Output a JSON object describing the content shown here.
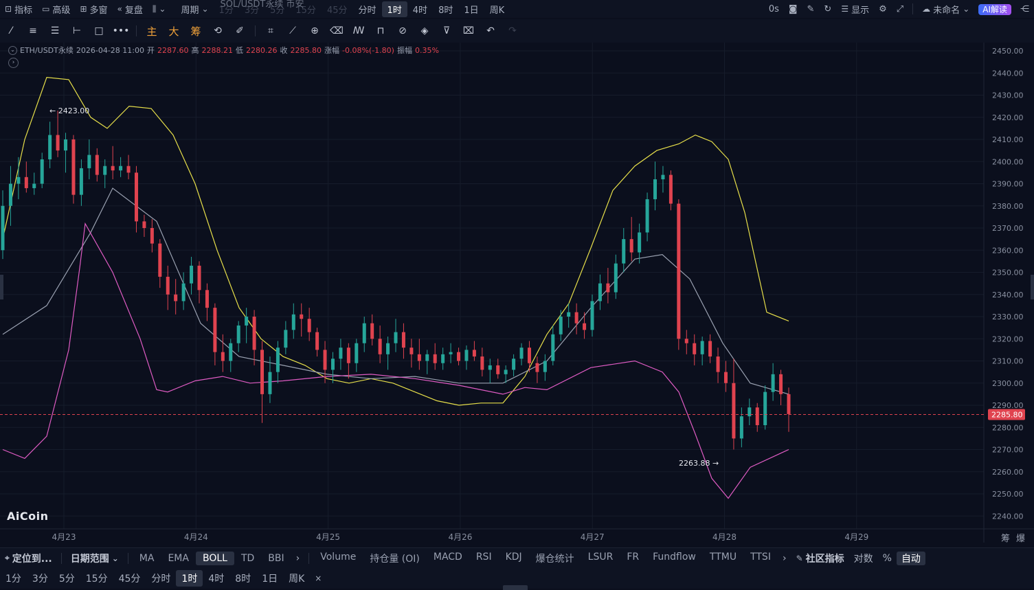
{
  "topbar": {
    "left_items": [
      {
        "icon": "indicator-icon",
        "label": "指标"
      },
      {
        "icon": "advanced-icon",
        "label": "高级"
      },
      {
        "icon": "multi-window-icon",
        "label": "多窗"
      },
      {
        "icon": "replay-icon",
        "label": "复盘"
      },
      {
        "icon": "chart-type-icon",
        "label": ""
      }
    ],
    "period_label": "周期",
    "symbol_overlay": "SOL/USDT永续 币安",
    "periods": [
      "1分",
      "3分",
      "5分",
      "15分",
      "45分",
      "分时",
      "1时",
      "4时",
      "8时",
      "1日",
      "周K"
    ],
    "active_period": "1时",
    "right_items": {
      "delay": "0s",
      "display": "显示",
      "layout_name": "未命名",
      "ai_label": "AI解读"
    }
  },
  "toolbar": {
    "orange_tools": [
      "主",
      "大",
      "筹"
    ]
  },
  "info": {
    "symbol": "ETH/USDT永续",
    "datetime": "2026-04-28 11:00",
    "open_label": "开",
    "open": "2287.60",
    "high_label": "高",
    "high": "2288.21",
    "low_label": "低",
    "low": "2280.26",
    "close_label": "收",
    "close": "2285.80",
    "change_label": "涨幅",
    "change": "-0.08%(-1.80)",
    "amp_label": "振幅",
    "amp": "0.35%"
  },
  "chart_data": {
    "type": "candlestick",
    "symbol": "ETH/USDT永续",
    "interval": "1H",
    "ylim": [
      2235,
      2455
    ],
    "y_ticks": [
      2240,
      2250,
      2260,
      2270,
      2280,
      2290,
      2300,
      2310,
      2320,
      2330,
      2340,
      2350,
      2360,
      2370,
      2380,
      2390,
      2400,
      2410,
      2420,
      2430,
      2440,
      2450
    ],
    "x_ticks": [
      "4月23",
      "4月24",
      "4月25",
      "4月26",
      "4月27",
      "4月28",
      "4月29"
    ],
    "last_price": "2285.80",
    "max_annotation": "2423.00",
    "min_annotation": "2263.88",
    "colors": {
      "up": "#26a69a",
      "down": "#e0434f",
      "upper": "#e8e04a",
      "mid": "#9aa1b1",
      "lower": "#e05cc4",
      "background": "#0b0f1d"
    },
    "bollinger": {
      "upper": [
        [
          0,
          2365
        ],
        [
          8,
          2410
        ],
        [
          16,
          2438
        ],
        [
          24,
          2437
        ],
        [
          32,
          2420
        ],
        [
          38,
          2415
        ],
        [
          46,
          2425
        ],
        [
          54,
          2424
        ],
        [
          62,
          2412
        ],
        [
          70,
          2390
        ],
        [
          78,
          2360
        ],
        [
          86,
          2334
        ],
        [
          94,
          2320
        ],
        [
          102,
          2312
        ],
        [
          110,
          2308
        ],
        [
          118,
          2302
        ],
        [
          126,
          2300
        ],
        [
          134,
          2302
        ],
        [
          142,
          2300
        ],
        [
          150,
          2296
        ],
        [
          158,
          2292
        ],
        [
          166,
          2290
        ],
        [
          174,
          2291
        ],
        [
          182,
          2291
        ],
        [
          190,
          2303
        ],
        [
          198,
          2322
        ],
        [
          206,
          2336
        ],
        [
          214,
          2361
        ],
        [
          222,
          2387
        ],
        [
          230,
          2398
        ],
        [
          238,
          2405
        ],
        [
          246,
          2408
        ],
        [
          252,
          2412
        ],
        [
          258,
          2409
        ],
        [
          264,
          2401
        ],
        [
          270,
          2377
        ],
        [
          278,
          2332
        ],
        [
          286,
          2328
        ]
      ],
      "mid": [
        [
          0,
          2322
        ],
        [
          16,
          2335
        ],
        [
          32,
          2368
        ],
        [
          40,
          2388
        ],
        [
          56,
          2373
        ],
        [
          72,
          2327
        ],
        [
          86,
          2312
        ],
        [
          102,
          2308
        ],
        [
          118,
          2304
        ],
        [
          134,
          2302
        ],
        [
          150,
          2303
        ],
        [
          166,
          2300
        ],
        [
          182,
          2300
        ],
        [
          198,
          2310
        ],
        [
          214,
          2334
        ],
        [
          230,
          2356
        ],
        [
          240,
          2358
        ],
        [
          250,
          2347
        ],
        [
          262,
          2318
        ],
        [
          272,
          2300
        ],
        [
          286,
          2295
        ]
      ],
      "lower": [
        [
          0,
          2270
        ],
        [
          8,
          2266
        ],
        [
          16,
          2276
        ],
        [
          24,
          2315
        ],
        [
          28,
          2352
        ],
        [
          30,
          2372
        ],
        [
          40,
          2350
        ],
        [
          50,
          2320
        ],
        [
          56,
          2297
        ],
        [
          60,
          2296
        ],
        [
          70,
          2301
        ],
        [
          80,
          2303
        ],
        [
          90,
          2300
        ],
        [
          102,
          2301
        ],
        [
          118,
          2303
        ],
        [
          134,
          2304
        ],
        [
          150,
          2302
        ],
        [
          166,
          2299
        ],
        [
          182,
          2295
        ],
        [
          190,
          2298
        ],
        [
          198,
          2297
        ],
        [
          214,
          2307
        ],
        [
          230,
          2310
        ],
        [
          240,
          2305
        ],
        [
          246,
          2296
        ],
        [
          252,
          2277
        ],
        [
          258,
          2257
        ],
        [
          264,
          2248
        ],
        [
          272,
          2262
        ],
        [
          286,
          2270
        ]
      ]
    },
    "candles": [
      [
        2360,
        2387,
        2356,
        2380
      ],
      [
        2380,
        2398,
        2371,
        2390
      ],
      [
        2390,
        2402,
        2383,
        2393
      ],
      [
        2393,
        2400,
        2386,
        2388
      ],
      [
        2388,
        2395,
        2385,
        2390
      ],
      [
        2390,
        2404,
        2388,
        2401
      ],
      [
        2401,
        2418,
        2397,
        2412
      ],
      [
        2412,
        2423,
        2402,
        2405
      ],
      [
        2405,
        2413,
        2395,
        2410
      ],
      [
        2410,
        2412,
        2381,
        2385
      ],
      [
        2385,
        2401,
        2380,
        2397
      ],
      [
        2397,
        2410,
        2392,
        2403
      ],
      [
        2403,
        2406,
        2391,
        2394
      ],
      [
        2394,
        2401,
        2388,
        2398
      ],
      [
        2398,
        2407,
        2392,
        2396
      ],
      [
        2396,
        2402,
        2393,
        2398
      ],
      [
        2398,
        2403,
        2392,
        2395
      ],
      [
        2395,
        2398,
        2368,
        2373
      ],
      [
        2373,
        2376,
        2366,
        2370
      ],
      [
        2370,
        2374,
        2359,
        2363
      ],
      [
        2363,
        2365,
        2343,
        2348
      ],
      [
        2348,
        2353,
        2333,
        2340
      ],
      [
        2340,
        2347,
        2331,
        2337
      ],
      [
        2337,
        2350,
        2333,
        2345
      ],
      [
        2345,
        2357,
        2340,
        2353
      ],
      [
        2353,
        2355,
        2336,
        2342
      ],
      [
        2342,
        2345,
        2328,
        2334
      ],
      [
        2334,
        2336,
        2308,
        2314
      ],
      [
        2314,
        2322,
        2305,
        2310
      ],
      [
        2310,
        2320,
        2305,
        2318
      ],
      [
        2318,
        2328,
        2314,
        2326
      ],
      [
        2326,
        2334,
        2318,
        2330
      ],
      [
        2330,
        2333,
        2308,
        2315
      ],
      [
        2315,
        2319,
        2282,
        2295
      ],
      [
        2295,
        2312,
        2291,
        2305
      ],
      [
        2305,
        2319,
        2300,
        2316
      ],
      [
        2316,
        2328,
        2313,
        2324
      ],
      [
        2324,
        2336,
        2320,
        2331
      ],
      [
        2331,
        2336,
        2321,
        2329
      ],
      [
        2329,
        2334,
        2319,
        2323
      ],
      [
        2323,
        2325,
        2312,
        2315
      ],
      [
        2315,
        2319,
        2300,
        2306
      ],
      [
        2306,
        2314,
        2300,
        2311
      ],
      [
        2311,
        2320,
        2306,
        2316
      ],
      [
        2316,
        2318,
        2302,
        2309
      ],
      [
        2309,
        2320,
        2305,
        2318
      ],
      [
        2318,
        2330,
        2314,
        2327
      ],
      [
        2327,
        2331,
        2317,
        2320
      ],
      [
        2320,
        2326,
        2309,
        2313
      ],
      [
        2313,
        2321,
        2306,
        2318
      ],
      [
        2318,
        2329,
        2314,
        2323
      ],
      [
        2323,
        2327,
        2311,
        2316
      ],
      [
        2316,
        2320,
        2307,
        2313
      ],
      [
        2313,
        2320,
        2306,
        2310
      ],
      [
        2310,
        2315,
        2304,
        2313
      ],
      [
        2313,
        2318,
        2306,
        2309
      ],
      [
        2309,
        2316,
        2306,
        2313
      ],
      [
        2313,
        2318,
        2309,
        2314
      ],
      [
        2314,
        2316,
        2308,
        2310
      ],
      [
        2310,
        2317,
        2306,
        2315
      ],
      [
        2315,
        2319,
        2310,
        2312
      ],
      [
        2312,
        2316,
        2303,
        2306
      ],
      [
        2306,
        2311,
        2300,
        2308
      ],
      [
        2308,
        2311,
        2302,
        2304
      ],
      [
        2304,
        2308,
        2300,
        2306
      ],
      [
        2306,
        2313,
        2303,
        2311
      ],
      [
        2311,
        2318,
        2308,
        2316
      ],
      [
        2316,
        2319,
        2305,
        2309
      ],
      [
        2309,
        2312,
        2300,
        2305
      ],
      [
        2305,
        2313,
        2301,
        2310
      ],
      [
        2310,
        2326,
        2308,
        2322
      ],
      [
        2322,
        2333,
        2319,
        2330
      ],
      [
        2330,
        2336,
        2325,
        2332
      ],
      [
        2332,
        2336,
        2322,
        2327
      ],
      [
        2327,
        2332,
        2320,
        2324
      ],
      [
        2324,
        2340,
        2321,
        2337
      ],
      [
        2337,
        2349,
        2333,
        2345
      ],
      [
        2345,
        2352,
        2336,
        2341
      ],
      [
        2341,
        2358,
        2338,
        2354
      ],
      [
        2354,
        2370,
        2350,
        2365
      ],
      [
        2365,
        2375,
        2355,
        2359
      ],
      [
        2359,
        2372,
        2354,
        2368
      ],
      [
        2368,
        2386,
        2364,
        2383
      ],
      [
        2383,
        2400,
        2378,
        2392
      ],
      [
        2392,
        2398,
        2386,
        2394
      ],
      [
        2394,
        2396,
        2378,
        2381
      ],
      [
        2381,
        2383,
        2315,
        2320
      ],
      [
        2320,
        2324,
        2313,
        2318
      ],
      [
        2318,
        2322,
        2308,
        2313
      ],
      [
        2313,
        2321,
        2308,
        2319
      ],
      [
        2319,
        2322,
        2309,
        2312
      ],
      [
        2312,
        2316,
        2300,
        2305
      ],
      [
        2305,
        2310,
        2296,
        2300
      ],
      [
        2300,
        2311,
        2270,
        2275
      ],
      [
        2275,
        2289,
        2271,
        2285
      ],
      [
        2285,
        2293,
        2281,
        2289
      ],
      [
        2289,
        2291,
        2278,
        2281
      ],
      [
        2281,
        2299,
        2279,
        2296
      ],
      [
        2296,
        2309,
        2292,
        2304
      ],
      [
        2304,
        2306,
        2290,
        2295
      ],
      [
        2295,
        2298,
        2278,
        2286
      ]
    ]
  },
  "bottom1": {
    "locate": "定位到...",
    "date_range": "日期范围",
    "main_indicators": [
      "MA",
      "EMA",
      "BOLL",
      "TD",
      "BBI"
    ],
    "active_main": "BOLL",
    "sub_indicators": [
      "Volume",
      "持仓量 (OI)",
      "MACD",
      "RSI",
      "KDJ",
      "爆仓统计",
      "LSUR",
      "FR",
      "Fundflow",
      "TTMU",
      "TTSI"
    ],
    "community": "社区指标",
    "log": "对数",
    "percent": "%",
    "auto": "自动"
  },
  "bottom2": {
    "periods": [
      "1分",
      "3分",
      "5分",
      "15分",
      "45分",
      "分时",
      "1时",
      "4时",
      "8时",
      "1日",
      "周K"
    ],
    "active": "1时",
    "close": "×"
  },
  "side_labels": {
    "chips": "筹",
    "liq": "爆"
  },
  "brand": "AiCoin"
}
